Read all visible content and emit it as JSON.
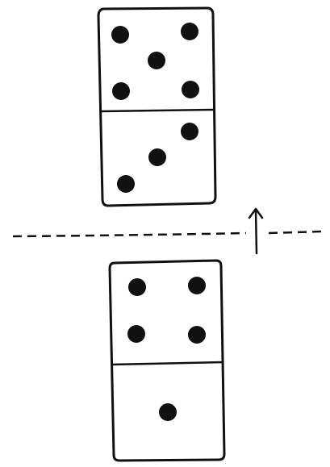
{
  "diagram": {
    "description_visible_text": "",
    "colors": {
      "ink": "#111111",
      "background": "#ffffff"
    },
    "domino_top": {
      "upper_half_pips": 5,
      "lower_half_pips": 3
    },
    "domino_bottom": {
      "upper_half_pips": 4,
      "lower_half_pips": 1
    },
    "mirror_line": {
      "style": "dashed"
    },
    "arrow": {
      "direction": "up"
    }
  }
}
